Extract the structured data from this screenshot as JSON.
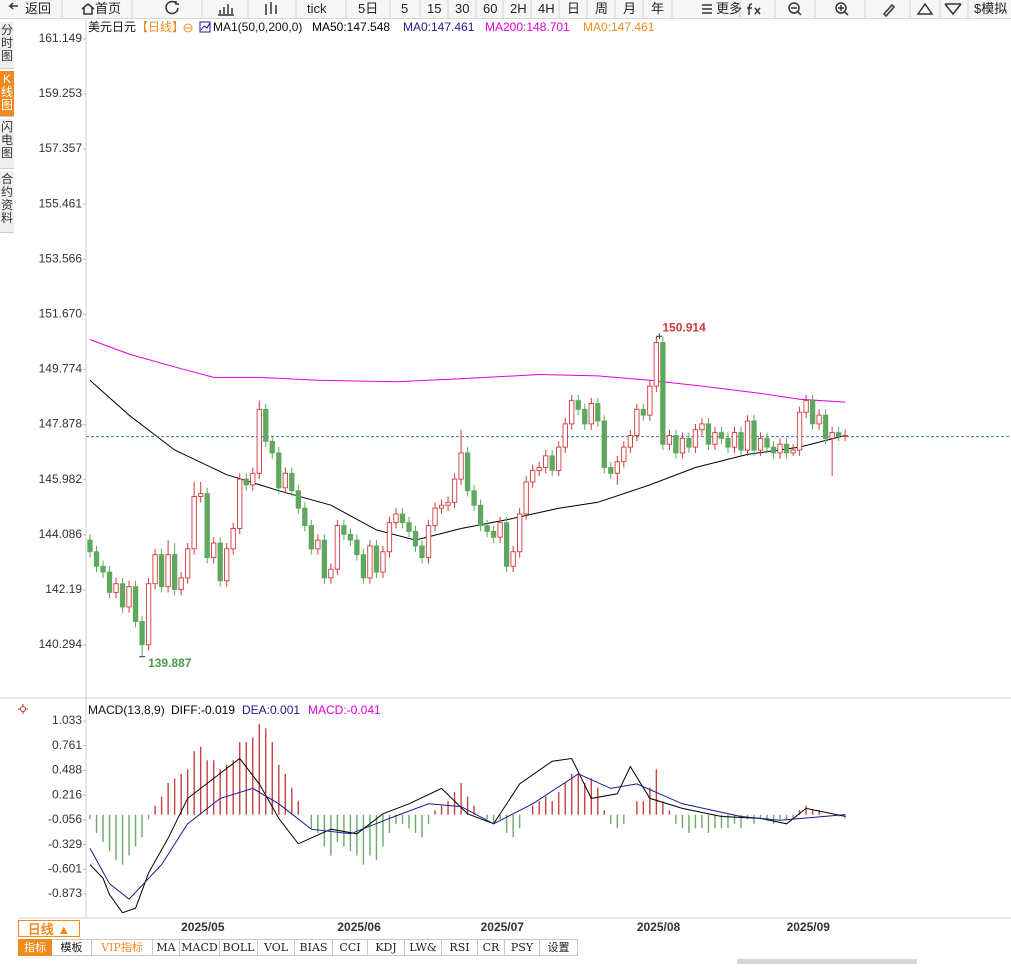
{
  "toolbar": [
    "返回",
    "首页",
    "tick",
    "5日",
    "5",
    "15",
    "30",
    "60",
    "2H",
    "4H",
    "日",
    "周",
    "月",
    "年",
    "更多",
    "$模拟"
  ],
  "sidebar": [
    "分时图",
    "K线图",
    "闪电图",
    "合约资料"
  ],
  "chart_data": [
    {
      "type": "candlestick",
      "title": "美元日元",
      "period": "【日线】",
      "indicator": "MA1(50,0,200,0)",
      "legend": [
        {
          "text": "MA50:147.548",
          "color": "#000000"
        },
        {
          "text": "MA0:147.461",
          "color": "#1a1a90"
        },
        {
          "text": "MA200:148.701",
          "color": "#e000e0"
        },
        {
          "text": "MA0:147.461",
          "color": "#f08a1c"
        }
      ],
      "categories": [
        null,
        null,
        null,
        null,
        null,
        null,
        null,
        null,
        null,
        null,
        null,
        null,
        null,
        null,
        "2025/05",
        null,
        null,
        null,
        null,
        null,
        null,
        null,
        null,
        null,
        null,
        null,
        null,
        null,
        null,
        null,
        null,
        null,
        null,
        null,
        null,
        null,
        null,
        null,
        "2025/06",
        null,
        null,
        null,
        null,
        null,
        null,
        null,
        null,
        null,
        null,
        null,
        null,
        null,
        null,
        null,
        null,
        null,
        null,
        null,
        null,
        null,
        "2025/07",
        null,
        null,
        null,
        null,
        null,
        null,
        null,
        null,
        null,
        null,
        null,
        null,
        null,
        null,
        null,
        null,
        null,
        null,
        null,
        null,
        null,
        null,
        null,
        "2025/08",
        null,
        null,
        null,
        null,
        null,
        null,
        null,
        null,
        null,
        null,
        null,
        null,
        null,
        null,
        null,
        null,
        null,
        null,
        null,
        null,
        null,
        null,
        "2025/09",
        null,
        null,
        null,
        null,
        null,
        null,
        null,
        null,
        null
      ],
      "open": [
        143.9,
        143.5,
        143.0,
        142.8,
        142.1,
        142.4,
        141.6,
        142.3,
        141.1,
        140.3,
        142.4,
        143.4,
        142.3,
        143.4,
        142.2,
        142.6,
        143.6,
        145.4,
        145.5,
        143.3,
        143.8,
        142.5,
        143.6,
        144.3,
        146.0,
        145.8,
        146.2,
        148.4,
        147.3,
        146.9,
        145.7,
        146.2,
        145.6,
        145.0,
        144.4,
        143.6,
        143.9,
        142.6,
        142.9,
        144.4,
        144.1,
        143.9,
        143.4,
        142.6,
        143.7,
        142.8,
        143.5,
        144.5,
        144.8,
        144.5,
        144.2,
        143.7,
        143.3,
        144.4,
        145.0,
        145.1,
        145.2,
        146.0,
        146.9,
        145.6,
        145.1,
        144.4,
        144.2,
        144.0,
        144.5,
        143.0,
        143.5,
        144.8,
        145.9,
        146.3,
        146.4,
        146.8,
        146.3,
        147.1,
        147.9,
        148.7,
        148.4,
        147.9,
        148.6,
        148.0,
        146.4,
        146.2,
        146.6,
        147.1,
        147.5,
        148.4,
        148.2,
        149.2,
        150.7,
        147.2,
        147.5,
        146.9,
        147.4,
        147.1,
        147.7,
        147.9,
        147.2,
        147.6,
        147.4,
        147.1,
        147.6,
        147.0,
        148.0,
        147.0,
        147.4,
        147.1,
        146.9,
        147.2,
        146.9,
        147.0,
        148.3,
        148.7,
        147.9,
        148.2,
        147.4,
        147.6,
        147.5
      ],
      "high": [
        144.1,
        143.7,
        143.2,
        143.0,
        142.6,
        142.6,
        142.5,
        142.5,
        141.3,
        142.6,
        143.6,
        143.6,
        143.9,
        143.8,
        142.8,
        143.8,
        145.9,
        145.9,
        145.7,
        144.0,
        144.0,
        143.8,
        144.5,
        146.2,
        146.2,
        146.4,
        148.7,
        148.6,
        147.5,
        147.1,
        146.4,
        146.4,
        145.8,
        145.2,
        144.6,
        144.1,
        144.1,
        143.1,
        144.6,
        144.6,
        144.3,
        144.1,
        143.6,
        143.9,
        143.9,
        143.7,
        144.7,
        145.0,
        145.0,
        144.7,
        144.4,
        143.9,
        144.6,
        145.2,
        145.3,
        145.4,
        146.2,
        147.7,
        147.1,
        145.8,
        145.3,
        144.6,
        144.4,
        144.7,
        144.7,
        143.7,
        145.0,
        146.1,
        146.5,
        146.6,
        147.0,
        147.0,
        147.3,
        148.1,
        148.9,
        148.9,
        148.6,
        148.8,
        148.8,
        148.2,
        146.6,
        146.8,
        147.3,
        147.7,
        148.6,
        148.6,
        149.4,
        150.914,
        150.9,
        147.7,
        147.7,
        147.6,
        147.6,
        147.9,
        148.1,
        148.1,
        147.8,
        147.8,
        147.6,
        147.8,
        147.8,
        148.2,
        148.2,
        147.6,
        147.6,
        147.3,
        147.4,
        147.4,
        147.2,
        148.5,
        148.9,
        148.9,
        148.4,
        148.4,
        147.8,
        147.8,
        147.7
      ],
      "low": [
        143.3,
        142.8,
        142.6,
        141.9,
        141.9,
        141.4,
        141.4,
        140.9,
        139.887,
        140.1,
        142.2,
        142.1,
        142.1,
        142.0,
        142.0,
        142.4,
        143.4,
        145.2,
        143.1,
        143.1,
        142.3,
        142.3,
        143.4,
        144.1,
        145.6,
        145.6,
        146.0,
        147.1,
        146.7,
        145.5,
        145.5,
        145.4,
        144.8,
        144.2,
        143.4,
        143.4,
        142.4,
        142.4,
        142.7,
        143.9,
        143.7,
        143.2,
        142.4,
        142.4,
        142.6,
        142.6,
        143.3,
        144.3,
        144.3,
        144.0,
        143.5,
        143.1,
        143.1,
        144.2,
        144.8,
        144.9,
        145.0,
        145.8,
        145.4,
        144.9,
        144.2,
        144.0,
        143.8,
        143.8,
        142.8,
        142.8,
        143.3,
        144.6,
        145.7,
        146.1,
        146.2,
        146.1,
        146.1,
        146.9,
        147.7,
        148.2,
        147.7,
        147.7,
        147.8,
        146.2,
        146.0,
        145.8,
        146.4,
        146.9,
        147.3,
        148.0,
        148.0,
        149.0,
        147.0,
        147.0,
        146.7,
        146.7,
        146.9,
        146.9,
        147.5,
        147.0,
        147.0,
        147.2,
        146.9,
        146.9,
        146.8,
        146.8,
        146.8,
        146.8,
        146.9,
        146.7,
        146.7,
        146.7,
        146.8,
        146.8,
        148.1,
        147.7,
        147.7,
        147.2,
        146.1,
        147.3,
        147.3
      ],
      "close": [
        143.5,
        143.0,
        142.8,
        142.1,
        142.4,
        141.6,
        142.3,
        141.1,
        140.3,
        142.4,
        143.4,
        142.3,
        143.4,
        142.2,
        142.6,
        143.6,
        145.4,
        145.5,
        143.3,
        143.8,
        142.5,
        143.6,
        144.3,
        146.0,
        145.8,
        146.2,
        148.4,
        147.3,
        146.9,
        145.7,
        146.2,
        145.6,
        145.0,
        144.4,
        143.6,
        143.9,
        142.6,
        142.9,
        144.4,
        144.1,
        143.9,
        143.4,
        142.6,
        143.7,
        142.8,
        143.5,
        144.5,
        144.8,
        144.5,
        144.2,
        143.7,
        143.3,
        144.4,
        145.0,
        145.1,
        145.2,
        146.0,
        146.9,
        145.6,
        145.1,
        144.4,
        144.2,
        144.0,
        144.5,
        143.0,
        143.5,
        144.8,
        145.9,
        146.3,
        146.4,
        146.8,
        146.3,
        147.1,
        147.9,
        148.7,
        148.4,
        147.9,
        148.6,
        148.0,
        146.4,
        146.2,
        146.6,
        147.1,
        147.5,
        148.4,
        148.2,
        149.2,
        150.7,
        147.2,
        147.5,
        146.9,
        147.4,
        147.1,
        147.7,
        147.9,
        147.2,
        147.6,
        147.4,
        147.1,
        147.6,
        147.0,
        148.0,
        147.0,
        147.4,
        147.1,
        146.9,
        147.2,
        146.9,
        147.0,
        148.3,
        148.7,
        147.9,
        148.2,
        147.4,
        147.6,
        147.5,
        147.5
      ],
      "up_color": "#d23a3a",
      "down_color": "#5fa85f",
      "series": [
        {
          "color": "#000000",
          "x": [
            0,
            6,
            13,
            21,
            29,
            37,
            44,
            50,
            57,
            64,
            72,
            78,
            86,
            93,
            101,
            109,
            116
          ],
          "values": [
            149.4,
            148.2,
            147.0,
            146.15,
            145.6,
            145.1,
            144.25,
            143.9,
            144.3,
            144.6,
            145.0,
            145.2,
            145.8,
            146.4,
            146.85,
            147.1,
            147.5
          ]
        },
        {
          "color": "#e000e0",
          "x": [
            0,
            6,
            14,
            19,
            26,
            35,
            47,
            57,
            69,
            78,
            86,
            94,
            103,
            109,
            116
          ],
          "values": [
            150.8,
            150.3,
            149.8,
            149.5,
            149.5,
            149.4,
            149.35,
            149.45,
            149.6,
            149.55,
            149.4,
            149.2,
            148.95,
            148.75,
            148.65
          ]
        }
      ],
      "ylim": [
        138.57,
        161.73
      ],
      "yticks": [
        161.149,
        159.253,
        157.357,
        155.461,
        153.566,
        {
          "value": 151.67,
          "label": "151.670"
        },
        149.774,
        147.878,
        145.982,
        144.086,
        142.19,
        140.294
      ],
      "last_price": 147.461,
      "last_price_color": "#3a7ac8"
    },
    {
      "type": "macd",
      "title": "MACD(13,8,9)",
      "legend": [
        {
          "text": "DIFF:-0.019",
          "color": "#000000"
        },
        {
          "text": "DEA:0.001",
          "color": "#1a1a90"
        },
        {
          "text": "MACD:-0.041",
          "color": "#e000e0"
        }
      ],
      "histogram": [
        -0.05,
        -0.2,
        -0.3,
        -0.4,
        -0.5,
        -0.55,
        -0.45,
        -0.35,
        -0.25,
        -0.05,
        0.1,
        0.2,
        0.35,
        0.4,
        0.45,
        0.5,
        0.7,
        0.75,
        0.6,
        0.6,
        0.5,
        0.55,
        0.6,
        0.8,
        0.8,
        0.85,
        1.0,
        0.95,
        0.8,
        0.55,
        0.45,
        0.3,
        0.15,
        0.0,
        -0.15,
        -0.2,
        -0.35,
        -0.45,
        -0.3,
        -0.35,
        -0.4,
        -0.45,
        -0.55,
        -0.45,
        -0.5,
        -0.35,
        -0.2,
        -0.1,
        -0.1,
        -0.15,
        -0.2,
        -0.25,
        -0.1,
        0.05,
        0.1,
        0.15,
        0.25,
        0.35,
        0.2,
        0.1,
        0.0,
        -0.05,
        -0.1,
        -0.05,
        -0.2,
        -0.25,
        -0.15,
        0.0,
        0.1,
        0.15,
        0.2,
        0.15,
        0.25,
        0.35,
        0.45,
        0.45,
        0.35,
        0.4,
        0.3,
        0.05,
        -0.1,
        -0.15,
        -0.1,
        0.0,
        0.15,
        0.15,
        0.3,
        0.5,
        0.15,
        0.05,
        -0.1,
        -0.15,
        -0.2,
        -0.15,
        -0.15,
        -0.2,
        -0.15,
        -0.15,
        -0.15,
        -0.1,
        -0.15,
        -0.05,
        -0.1,
        -0.05,
        -0.05,
        -0.1,
        -0.05,
        -0.05,
        -0.05,
        0.05,
        0.1,
        0.05,
        0.05,
        0.0,
        0.0,
        -0.02,
        -0.041
      ],
      "up_color": "#c84040",
      "down_color": "#6aaa6a",
      "series": [
        {
          "color": "#000000",
          "x": [
            0,
            2,
            3,
            5,
            7,
            9,
            12,
            15,
            19,
            23,
            26,
            29,
            32,
            37,
            41,
            45,
            49,
            54,
            58,
            62,
            66,
            71,
            74,
            77,
            81,
            83,
            86,
            91,
            97,
            103,
            107,
            110,
            116
          ],
          "values": [
            -0.55,
            -0.7,
            -0.88,
            -1.08,
            -1.03,
            -0.64,
            -0.26,
            0.18,
            0.4,
            0.62,
            0.34,
            -0.04,
            -0.32,
            -0.16,
            -0.21,
            0.01,
            0.12,
            0.29,
            0.01,
            -0.1,
            0.34,
            0.59,
            0.62,
            0.18,
            0.23,
            0.53,
            0.18,
            0.07,
            -0.02,
            -0.04,
            -0.1,
            0.07,
            -0.019
          ]
        },
        {
          "color": "#1a1a90",
          "x": [
            0,
            3,
            6,
            11,
            15,
            20,
            25,
            29,
            34,
            40,
            46,
            52,
            57,
            62,
            68,
            75,
            80,
            84,
            91,
            100,
            106,
            116
          ],
          "values": [
            -0.37,
            -0.76,
            -0.93,
            -0.55,
            -0.1,
            0.18,
            0.29,
            0.12,
            -0.16,
            -0.21,
            -0.04,
            0.12,
            0.09,
            -0.1,
            0.12,
            0.45,
            0.29,
            0.34,
            0.12,
            -0.02,
            -0.06,
            0.001
          ]
        }
      ],
      "ylim": [
        -1.138,
        1.209
      ],
      "yticks": [
        1.033,
        0.761,
        0.488,
        0.216,
        -0.056,
        -0.329,
        -0.601,
        -0.873
      ]
    }
  ],
  "period_tab": "日线 ▲",
  "tabs": [
    "指标",
    "模板",
    "VIP指标",
    "MA",
    "MACD",
    "BOLL",
    "VOL",
    "BIAS",
    "CCI",
    "KDJ",
    "LW&",
    "RSI",
    "CR",
    "PSY",
    "设置"
  ]
}
